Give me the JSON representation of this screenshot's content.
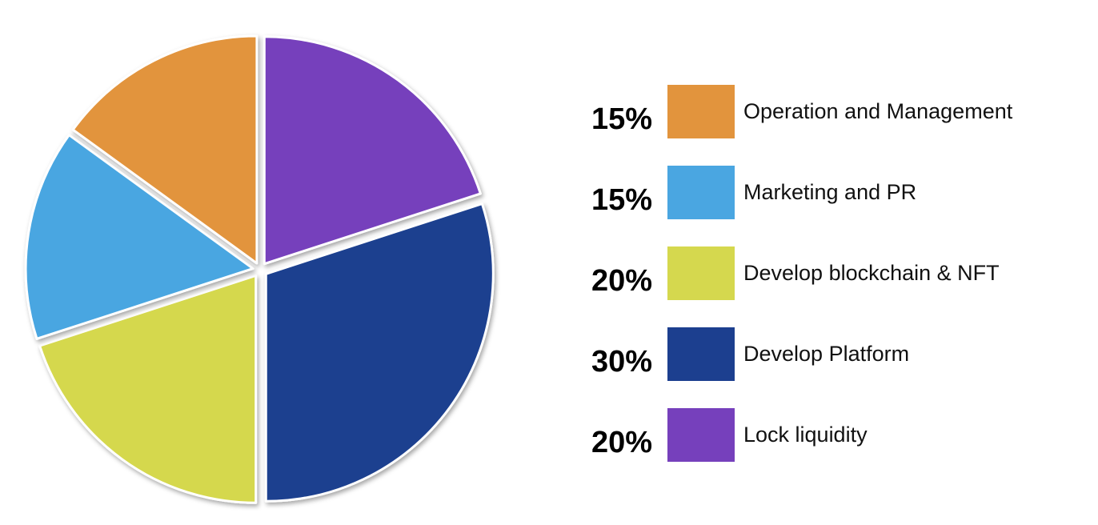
{
  "chart_data": {
    "type": "pie",
    "slices": [
      {
        "label": "Operation and Management",
        "value": 15,
        "value_label": "15%",
        "color": "#E2943D"
      },
      {
        "label": "Marketing and PR",
        "value": 15,
        "value_label": "15%",
        "color": "#4AA6E1"
      },
      {
        "label": "Develop blockchain & NFT",
        "value": 20,
        "value_label": "20%",
        "color": "#D5D84E"
      },
      {
        "label": "Develop Platform",
        "value": 30,
        "value_label": "30%",
        "color": "#1C3F8F"
      },
      {
        "label": "Lock liquidity",
        "value": 20,
        "value_label": "20%",
        "color": "#7640BC"
      }
    ],
    "legend_position": "right",
    "title": ""
  }
}
